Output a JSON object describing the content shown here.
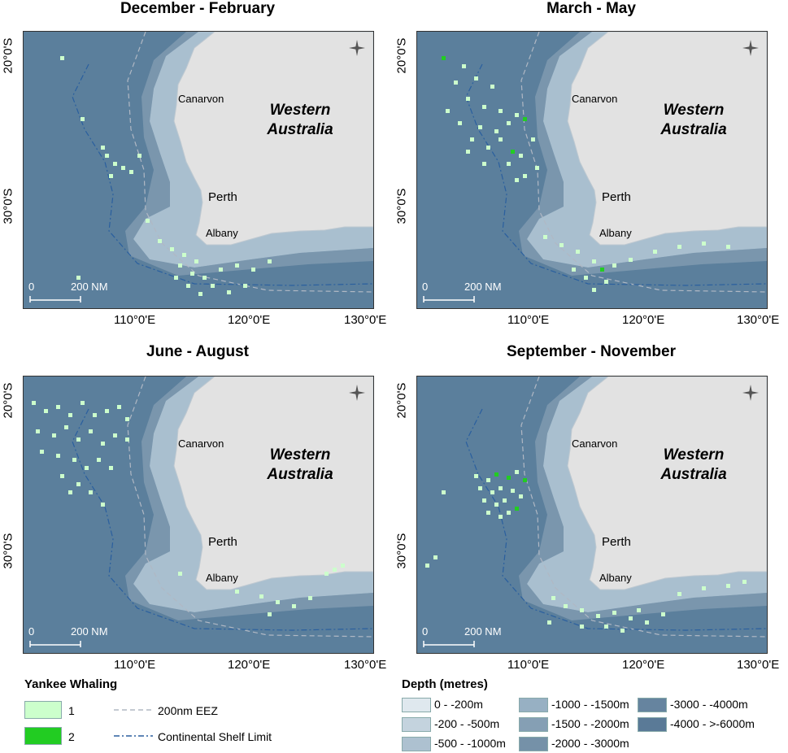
{
  "panels": [
    {
      "title": "December - February"
    },
    {
      "title": "March - May"
    },
    {
      "title": "June - August"
    },
    {
      "title": "September - November"
    }
  ],
  "map_labels": {
    "region_line1": "Western",
    "region_line2": "Australia",
    "towns": [
      "Canarvon",
      "Perth",
      "Albany"
    ],
    "scale": [
      "0",
      "200 NM"
    ],
    "lat_ticks": [
      "20°0'S",
      "30°0'S"
    ],
    "lon_ticks": [
      "110°0'E",
      "120°0'E",
      "130°0'E"
    ]
  },
  "legend": {
    "whaling_title": "Yankee Whaling",
    "whaling_items": [
      {
        "label": "1",
        "color": "#ccffcc"
      },
      {
        "label": "2",
        "color": "#22cc22"
      }
    ],
    "line_items": [
      {
        "label": "200nm EEZ",
        "color": "#b0b8c4"
      },
      {
        "label": "Continental Shelf Limit",
        "color": "#2a5f9e"
      }
    ],
    "depth_title": "Depth (metres)",
    "depth_items": [
      {
        "label": "0 - -200m",
        "color": "#dfe8ee"
      },
      {
        "label": "-200 - -500m",
        "color": "#c4d3de"
      },
      {
        "label": "-500 - -1000m",
        "color": "#adc1d0"
      },
      {
        "label": "-1000 - -1500m",
        "color": "#97b0c3"
      },
      {
        "label": "-1500 - -2000m",
        "color": "#859fb4"
      },
      {
        "label": "-2000 - -3000m",
        "color": "#7591a8"
      },
      {
        "label": "-3000 - -4000m",
        "color": "#66849f"
      },
      {
        "label": "-4000 - >-6000m",
        "color": "#5a7a97"
      }
    ]
  },
  "colors": {
    "land": "#e2e2e2",
    "ocean": "#5b7f9c",
    "grid_1": "#ccffcc",
    "grid_2": "#22cc22"
  }
}
